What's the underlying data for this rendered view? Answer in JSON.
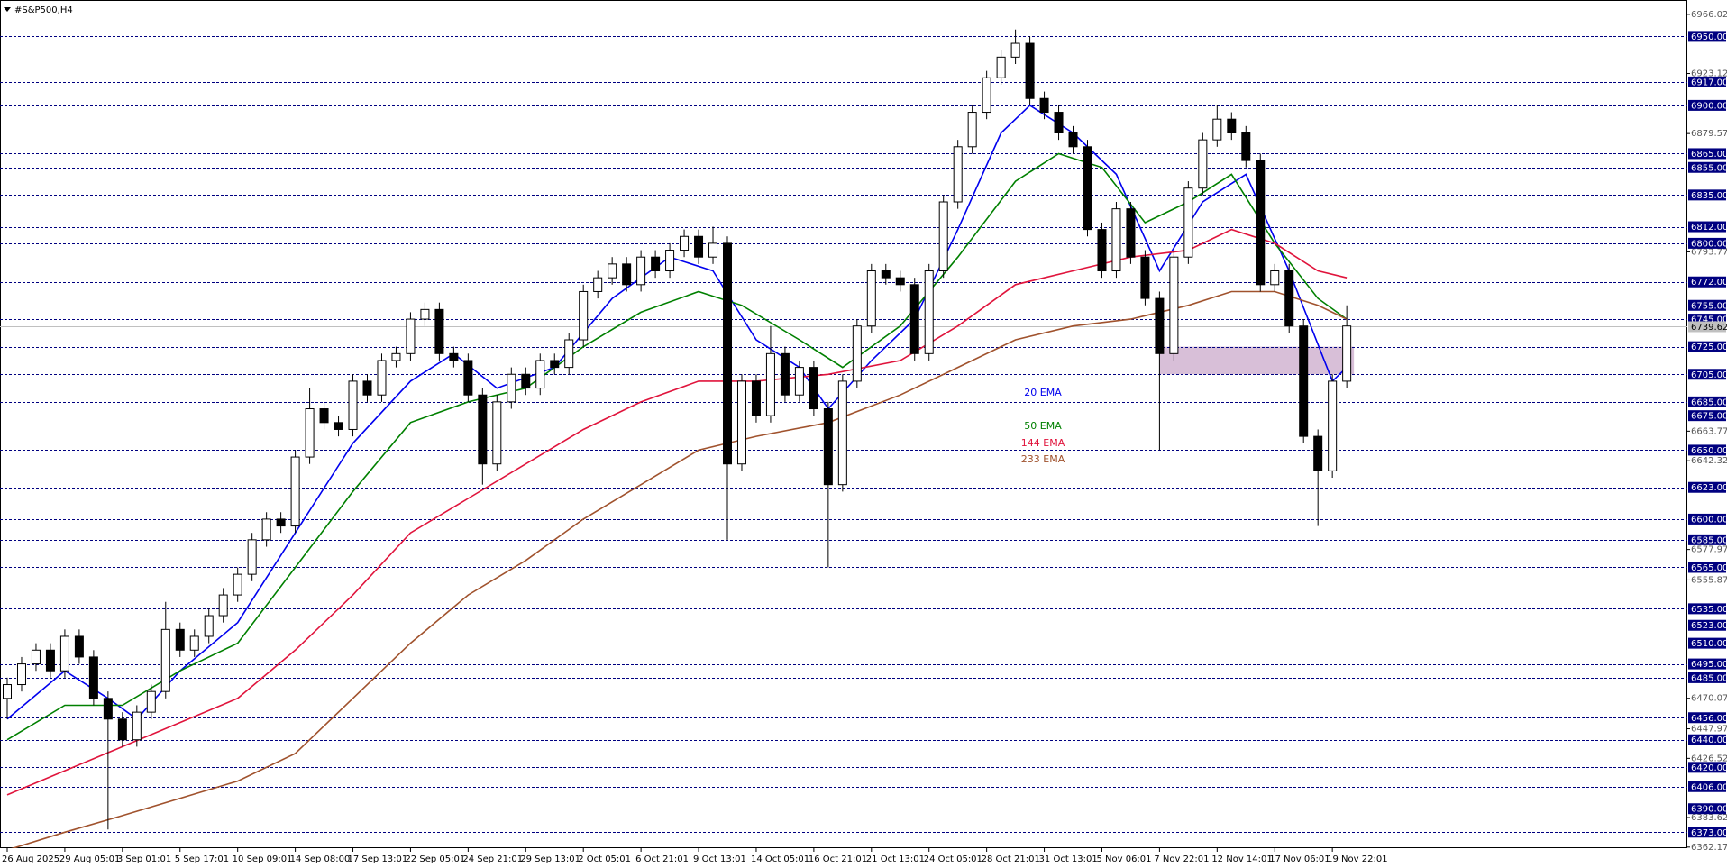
{
  "chart_data": {
    "type": "candlestick",
    "title": "#S&P500,H4",
    "categories": [
      "26 Aug 2025",
      null,
      null,
      null,
      "29 Aug 05:01",
      null,
      null,
      null,
      "3 Sep 01:01",
      null,
      null,
      null,
      "5 Sep 17:01",
      null,
      null,
      null,
      "10 Sep 09:01",
      null,
      null,
      null,
      "14 Sep 08:00",
      null,
      null,
      null,
      "17 Sep 13:01",
      null,
      null,
      null,
      "22 Sep 05:01",
      null,
      null,
      null,
      "24 Sep 21:01",
      null,
      null,
      null,
      "29 Sep 13:01",
      null,
      null,
      null,
      "2 Oct 05:01",
      null,
      null,
      null,
      "6 Oct 21:01",
      null,
      null,
      null,
      "9 Oct 13:01",
      null,
      null,
      null,
      "14 Oct 05:01",
      null,
      null,
      null,
      "16 Oct 21:01",
      null,
      null,
      null,
      "21 Oct 13:01",
      null,
      null,
      null,
      "24 Oct 05:01",
      null,
      null,
      null,
      "28 Oct 21:01",
      null,
      null,
      null,
      "31 Oct 13:01",
      null,
      null,
      null,
      "5 Nov 06:01",
      null,
      null,
      null,
      "7 Nov 22:01",
      null,
      null,
      null,
      "12 Nov 14:01",
      null,
      null,
      null,
      "17 Nov 06:01",
      null,
      null,
      null,
      "19 Nov 22:01",
      null
    ],
    "open": [
      6470,
      6480,
      6495,
      6505,
      6490,
      6515,
      6500,
      6470,
      6455,
      6440,
      6460,
      6475,
      6520,
      6505,
      6515,
      6530,
      6545,
      6560,
      6585,
      6600,
      6595,
      6645,
      6680,
      6670,
      6665,
      6700,
      6690,
      6715,
      6720,
      6745,
      6752,
      6720,
      6715,
      6690,
      6640,
      6685,
      6705,
      6695,
      6715,
      6710,
      6730,
      6765,
      6775,
      6785,
      6770,
      6790,
      6780,
      6795,
      6805,
      6790,
      6800,
      6640,
      6700,
      6675,
      6720,
      6690,
      6710,
      6680,
      6625,
      6700,
      6740,
      6780,
      6775,
      6770,
      6720,
      6780,
      6830,
      6870,
      6895,
      6920,
      6935,
      6945,
      6905,
      6895,
      6880,
      6870,
      6810,
      6780,
      6825,
      6790,
      6760,
      6720,
      6790,
      6840,
      6875,
      6890,
      6880,
      6860,
      6770,
      6780,
      6740,
      6660,
      6635,
      6700
    ],
    "high": [
      6485,
      6500,
      6510,
      6510,
      6520,
      6520,
      6505,
      6475,
      6460,
      6465,
      6480,
      6540,
      6525,
      6520,
      6535,
      6550,
      6565,
      6590,
      6605,
      6605,
      6650,
      6695,
      6685,
      6675,
      6705,
      6705,
      6720,
      6725,
      6750,
      6757,
      6757,
      6725,
      6720,
      6695,
      6690,
      6710,
      6710,
      6720,
      6720,
      6735,
      6770,
      6780,
      6790,
      6790,
      6795,
      6795,
      6800,
      6810,
      6810,
      6812,
      6805,
      6705,
      6705,
      6740,
      6725,
      6715,
      6715,
      6685,
      6705,
      6745,
      6785,
      6785,
      6780,
      6775,
      6785,
      6835,
      6875,
      6900,
      6925,
      6940,
      6955,
      6950,
      6910,
      6900,
      6885,
      6875,
      6815,
      6830,
      6830,
      6795,
      6765,
      6795,
      6845,
      6880,
      6900,
      6895,
      6885,
      6865,
      6785,
      6785,
      6745,
      6665,
      6705,
      6755
    ],
    "low": [
      6455,
      6475,
      6490,
      6485,
      6485,
      6495,
      6465,
      6375,
      6435,
      6435,
      6455,
      6470,
      6500,
      6500,
      6510,
      6525,
      6540,
      6555,
      6580,
      6590,
      6590,
      6640,
      6665,
      6660,
      6660,
      6685,
      6685,
      6710,
      6715,
      6740,
      6715,
      6710,
      6685,
      6625,
      6635,
      6680,
      6690,
      6690,
      6705,
      6705,
      6725,
      6760,
      6770,
      6765,
      6765,
      6775,
      6775,
      6790,
      6785,
      6785,
      6585,
      6635,
      6670,
      6670,
      6685,
      6685,
      6675,
      6565,
      6620,
      6695,
      6735,
      6770,
      6765,
      6715,
      6715,
      6775,
      6825,
      6865,
      6890,
      6915,
      6930,
      6900,
      6890,
      6875,
      6865,
      6805,
      6775,
      6775,
      6785,
      6755,
      6650,
      6715,
      6785,
      6835,
      6870,
      6875,
      6855,
      6765,
      6765,
      6735,
      6655,
      6595,
      6630,
      6695
    ],
    "close": [
      6480,
      6495,
      6505,
      6490,
      6515,
      6500,
      6470,
      6455,
      6440,
      6460,
      6475,
      6520,
      6505,
      6515,
      6530,
      6545,
      6560,
      6585,
      6600,
      6595,
      6645,
      6680,
      6670,
      6665,
      6700,
      6690,
      6715,
      6720,
      6745,
      6752,
      6720,
      6715,
      6690,
      6640,
      6685,
      6705,
      6695,
      6715,
      6710,
      6730,
      6765,
      6775,
      6785,
      6770,
      6790,
      6780,
      6795,
      6805,
      6790,
      6800,
      6640,
      6700,
      6675,
      6720,
      6690,
      6710,
      6680,
      6625,
      6700,
      6740,
      6780,
      6775,
      6770,
      6720,
      6780,
      6830,
      6870,
      6895,
      6920,
      6935,
      6945,
      6905,
      6895,
      6880,
      6870,
      6810,
      6780,
      6825,
      6790,
      6760,
      6720,
      6790,
      6840,
      6875,
      6890,
      6880,
      6860,
      6770,
      6780,
      6740,
      6660,
      6635,
      6700,
      6740
    ],
    "up_color": "#ffffff",
    "down_color": "#000000",
    "series": [
      {
        "name": "20 EMA",
        "color": "#0000ee",
        "x": [
          0,
          4,
          7,
          9,
          12,
          16,
          20,
          24,
          28,
          31,
          34,
          38,
          42,
          46,
          49,
          52,
          55,
          57,
          60,
          63,
          66,
          69,
          71,
          74,
          77,
          80,
          83,
          86,
          89,
          92,
          93
        ],
        "values": [
          6455,
          6490,
          6470,
          6455,
          6490,
          6525,
          6590,
          6655,
          6700,
          6720,
          6695,
          6710,
          6760,
          6790,
          6780,
          6730,
          6710,
          6680,
          6715,
          6745,
          6810,
          6880,
          6900,
          6880,
          6850,
          6780,
          6830,
          6850,
          6780,
          6700,
          6710
        ]
      },
      {
        "name": "50 EMA",
        "color": "#008000",
        "x": [
          0,
          4,
          8,
          12,
          16,
          20,
          24,
          28,
          32,
          36,
          40,
          44,
          48,
          51,
          55,
          58,
          62,
          66,
          70,
          73,
          76,
          79,
          82,
          85,
          88,
          91,
          93
        ],
        "values": [
          6440,
          6465,
          6465,
          6490,
          6510,
          6565,
          6620,
          6670,
          6685,
          6695,
          6725,
          6750,
          6765,
          6755,
          6730,
          6710,
          6740,
          6790,
          6845,
          6865,
          6855,
          6815,
          6830,
          6850,
          6800,
          6760,
          6745
        ]
      },
      {
        "name": "144 EMA",
        "color": "#e0143c",
        "x": [
          0,
          8,
          16,
          20,
          24,
          28,
          32,
          36,
          40,
          44,
          48,
          52,
          57,
          62,
          66,
          70,
          74,
          78,
          82,
          85,
          88,
          91,
          93
        ],
        "values": [
          6400,
          6435,
          6470,
          6505,
          6545,
          6590,
          6615,
          6640,
          6665,
          6685,
          6700,
          6700,
          6705,
          6715,
          6740,
          6770,
          6780,
          6790,
          6795,
          6810,
          6800,
          6780,
          6775
        ]
      },
      {
        "name": "233 EMA",
        "color": "#a0522d",
        "x": [
          0,
          4,
          8,
          16,
          20,
          24,
          28,
          32,
          36,
          40,
          44,
          48,
          52,
          57,
          62,
          66,
          70,
          74,
          78,
          82,
          85,
          88,
          91,
          93
        ],
        "values": [
          6360,
          6373,
          6385,
          6410,
          6430,
          6470,
          6510,
          6545,
          6570,
          6600,
          6625,
          6650,
          6660,
          6670,
          6690,
          6710,
          6730,
          6740,
          6745,
          6755,
          6765,
          6765,
          6755,
          6745
        ]
      }
    ],
    "ylim": [
      6361.4,
      6976.4
    ],
    "yticks": [
      6966.02,
      6923.12,
      6879.57,
      6793.77,
      6663.77,
      6642.32,
      6577.97,
      6555.87,
      6470.07,
      6447.97,
      6426.52,
      6383.62,
      6362.17
    ],
    "levels": [
      {
        "value": 6950,
        "label": "6950.00"
      },
      {
        "value": 6917,
        "label": "6917.00"
      },
      {
        "value": 6900,
        "label": "6900.00"
      },
      {
        "value": 6865,
        "label": "6865.00"
      },
      {
        "value": 6855,
        "label": "6855.00"
      },
      {
        "value": 6835,
        "label": "6835.00"
      },
      {
        "value": 6812,
        "label": "6812.00"
      },
      {
        "value": 6800,
        "label": "6800.00"
      },
      {
        "value": 6772,
        "label": "6772.00"
      },
      {
        "value": 6755,
        "label": "6755.00"
      },
      {
        "value": 6745,
        "label": "6745.00"
      },
      {
        "value": 6725,
        "label": "6725.00"
      },
      {
        "value": 6705,
        "label": "6705.00"
      },
      {
        "value": 6685,
        "label": "6685.00"
      },
      {
        "value": 6675,
        "label": "6675.00"
      },
      {
        "value": 6650,
        "label": "6650.00"
      },
      {
        "value": 6623,
        "label": "6623.00"
      },
      {
        "value": 6600,
        "label": "6600.00"
      },
      {
        "value": 6585,
        "label": "6585.00"
      },
      {
        "value": 6565,
        "label": "6565.00"
      },
      {
        "value": 6535,
        "label": "6535.00"
      },
      {
        "value": 6523,
        "label": "6523.00"
      },
      {
        "value": 6510,
        "label": "6510.00"
      },
      {
        "value": 6495,
        "label": "6495.00"
      },
      {
        "value": 6485,
        "label": "6485.00"
      },
      {
        "value": 6456,
        "label": "6456.00"
      },
      {
        "value": 6440,
        "label": "6440.00"
      },
      {
        "value": 6420,
        "label": "6420.00"
      },
      {
        "value": 6406,
        "label": "6406.00"
      },
      {
        "value": 6390,
        "label": "6390.00"
      },
      {
        "value": 6373,
        "label": "6373.00"
      }
    ],
    "level_color": "#000080",
    "current_price": 6739.62,
    "zone": {
      "x": [
        80,
        93.5
      ],
      "y": [
        6705,
        6725
      ],
      "color": "#d8bfd8"
    }
  }
}
